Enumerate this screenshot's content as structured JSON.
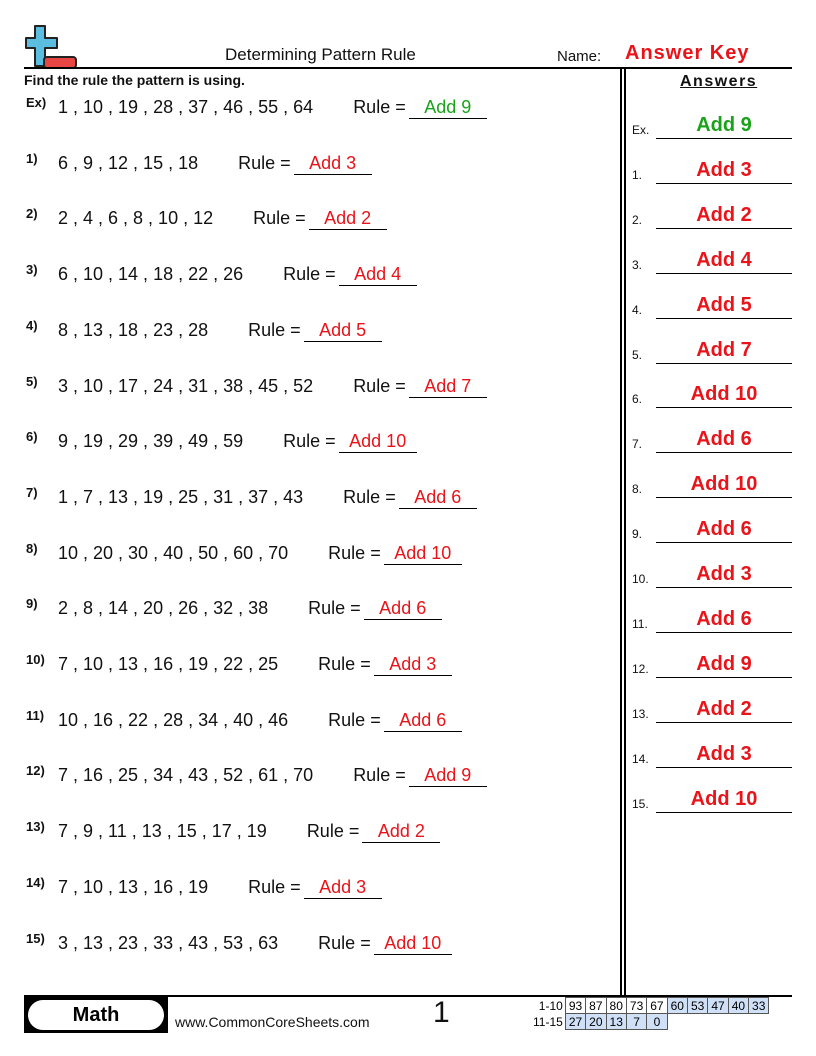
{
  "header": {
    "title": "Determining Pattern Rule",
    "name_label": "Name:",
    "name_value": "Answer Key",
    "logo": "plus-minus-logo-icon"
  },
  "instructions": "Find the rule the pattern is using.",
  "answers_title": "Answers",
  "rule_label": "Rule =",
  "colors": {
    "answer": "#e8141a",
    "example": "#1aa31a",
    "score_highlight": "#cfe0f7"
  },
  "problems": [
    {
      "label": "Ex)",
      "sequence": "1 , 10 , 19 , 28 , 37 , 46 , 55 , 64",
      "answer": "Add 9"
    },
    {
      "label": "1)",
      "sequence": "6 , 9 , 12 , 15 , 18",
      "answer": "Add 3"
    },
    {
      "label": "2)",
      "sequence": "2 , 4 , 6 , 8 , 10 , 12",
      "answer": "Add 2"
    },
    {
      "label": "3)",
      "sequence": "6 , 10 , 14 , 18 , 22 , 26",
      "answer": "Add 4"
    },
    {
      "label": "4)",
      "sequence": "8 , 13 , 18 , 23 , 28",
      "answer": "Add 5"
    },
    {
      "label": "5)",
      "sequence": "3 , 10 , 17 , 24 , 31 , 38 , 45 , 52",
      "answer": "Add 7"
    },
    {
      "label": "6)",
      "sequence": "9 , 19 , 29 , 39 , 49 , 59",
      "answer": "Add 10"
    },
    {
      "label": "7)",
      "sequence": "1 , 7 , 13 , 19 , 25 , 31 , 37 , 43",
      "answer": "Add 6"
    },
    {
      "label": "8)",
      "sequence": "10 , 20 , 30 , 40 , 50 , 60 , 70",
      "answer": "Add 10"
    },
    {
      "label": "9)",
      "sequence": "2 , 8 , 14 , 20 , 26 , 32 , 38",
      "answer": "Add 6"
    },
    {
      "label": "10)",
      "sequence": "7 , 10 , 13 , 16 , 19 , 22 , 25",
      "answer": "Add 3"
    },
    {
      "label": "11)",
      "sequence": "10 , 16 , 22 , 28 , 34 , 40 , 46",
      "answer": "Add 6"
    },
    {
      "label": "12)",
      "sequence": "7 , 16 , 25 , 34 , 43 , 52 , 61 , 70",
      "answer": "Add 9"
    },
    {
      "label": "13)",
      "sequence": "7 , 9 , 11 , 13 , 15 , 17 , 19",
      "answer": "Add 2"
    },
    {
      "label": "14)",
      "sequence": "7 , 10 , 13 , 16 , 19",
      "answer": "Add 3"
    },
    {
      "label": "15)",
      "sequence": "3 , 13 , 23 , 33 , 43 , 53 , 63",
      "answer": "Add 10"
    }
  ],
  "answer_key": [
    {
      "label": "Ex.",
      "answer": "Add 9"
    },
    {
      "label": "1.",
      "answer": "Add 3"
    },
    {
      "label": "2.",
      "answer": "Add 2"
    },
    {
      "label": "3.",
      "answer": "Add 4"
    },
    {
      "label": "4.",
      "answer": "Add 5"
    },
    {
      "label": "5.",
      "answer": "Add 7"
    },
    {
      "label": "6.",
      "answer": "Add 10"
    },
    {
      "label": "7.",
      "answer": "Add 6"
    },
    {
      "label": "8.",
      "answer": "Add 10"
    },
    {
      "label": "9.",
      "answer": "Add 6"
    },
    {
      "label": "10.",
      "answer": "Add 3"
    },
    {
      "label": "11.",
      "answer": "Add 6"
    },
    {
      "label": "12.",
      "answer": "Add 9"
    },
    {
      "label": "13.",
      "answer": "Add 2"
    },
    {
      "label": "14.",
      "answer": "Add 3"
    },
    {
      "label": "15.",
      "answer": "Add 10"
    }
  ],
  "footer": {
    "subject": "Math",
    "website": "www.CommonCoreSheets.com",
    "page_number": "1",
    "score_rows": [
      {
        "label": "1-10",
        "scores": [
          "93",
          "87",
          "80",
          "73",
          "67",
          "60",
          "53",
          "47",
          "40",
          "33"
        ]
      },
      {
        "label": "11-15",
        "scores": [
          "27",
          "20",
          "13",
          "7",
          "0"
        ]
      }
    ]
  }
}
